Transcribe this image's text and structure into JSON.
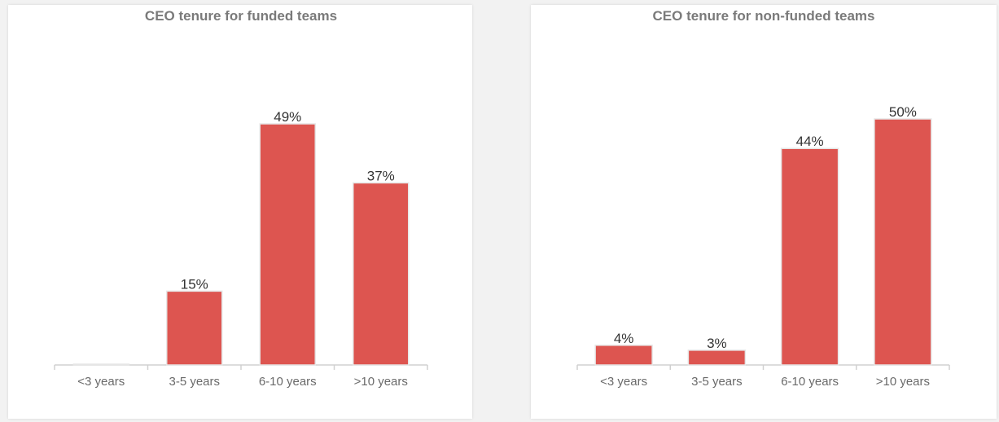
{
  "colors": {
    "bar": "#dd5550",
    "bar_outline": "#e6e6e6",
    "axis": "#d0d0d0"
  },
  "chart_data": [
    {
      "type": "bar",
      "title": "CEO tenure for funded teams",
      "xlabel": "",
      "ylabel": "",
      "categories": [
        "<3 years",
        "3-5 years",
        "6-10 years",
        ">10 years"
      ],
      "values": [
        0,
        15,
        49,
        37
      ],
      "value_labels": [
        "",
        "15%",
        "49%",
        "37%"
      ],
      "ylim": [
        0,
        55
      ],
      "grid": false,
      "legend": "none"
    },
    {
      "type": "bar",
      "title": "CEO tenure for non-funded teams",
      "xlabel": "",
      "ylabel": "",
      "categories": [
        "<3 years",
        "3-5 years",
        "6-10 years",
        ">10 years"
      ],
      "values": [
        4,
        3,
        44,
        50
      ],
      "value_labels": [
        "4%",
        "3%",
        "44%",
        "50%"
      ],
      "ylim": [
        0,
        55
      ],
      "grid": false,
      "legend": "none"
    }
  ]
}
